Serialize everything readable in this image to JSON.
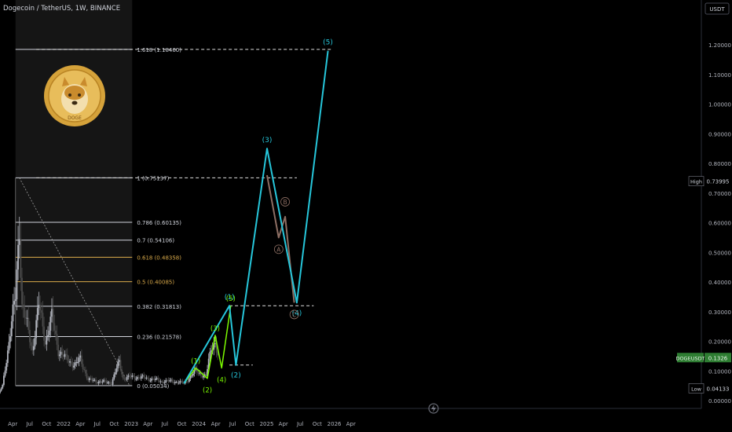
{
  "header": {
    "title": "Dogecoin / TetherUS, 1W, BINANCE"
  },
  "axis": {
    "currency_button": "USDT",
    "y_ticks": [
      "1.20000",
      "1.10000",
      "1.00000",
      "0.90000",
      "0.80000",
      "0.70000",
      "0.60000",
      "0.50000",
      "0.40000",
      "0.30000",
      "0.20000",
      "0.10000",
      "0.00000"
    ],
    "x_ticks": [
      "Apr",
      "Jul",
      "Oct",
      "2022",
      "Apr",
      "Jul",
      "Oct",
      "2023",
      "Apr",
      "Jul",
      "Oct",
      "2024",
      "Apr",
      "Jul",
      "Oct",
      "2025",
      "Apr",
      "Jul",
      "Oct",
      "2026",
      "Apr"
    ],
    "high_label": "High",
    "high_value": "0.73995",
    "low_label": "Low",
    "low_value": "0.04133",
    "symbol_label": "DOGEUSDT",
    "symbol_value": "0.1326"
  },
  "colors": {
    "background": "#000000",
    "up": "#b2b5be",
    "down": "#4a4a4a",
    "projection": "#26c6da",
    "wave_small": "#7cfc00",
    "correction": "#8d6e63",
    "fib_white": "#d1d4dc",
    "fib_gold": "#d8a94a",
    "highlight_box": "#151515",
    "symbol_badge": "#2e7d32"
  },
  "logo": {
    "name": "dogecoin-logo",
    "text": "DOGE"
  },
  "chart_data": {
    "type": "candlestick",
    "timeframe": "1W",
    "ylim": [
      0,
      1.26
    ],
    "fib_levels": [
      {
        "label": "1.618 (1.18460)",
        "value": 1.1846,
        "color": "white"
      },
      {
        "label": "1 (0.75137)",
        "value": 0.75137,
        "color": "white"
      },
      {
        "label": "0.786 (0.60135)",
        "value": 0.60135,
        "color": "white"
      },
      {
        "label": "0.7 (0.54106)",
        "value": 0.54106,
        "color": "white"
      },
      {
        "label": "0.618 (0.48358)",
        "value": 0.48358,
        "color": "gold"
      },
      {
        "label": "0.5 (0.40085)",
        "value": 0.40085,
        "color": "gold"
      },
      {
        "label": "0.382 (0.31813)",
        "value": 0.31813,
        "color": "white"
      },
      {
        "label": "0.236 (0.21578)",
        "value": 0.21578,
        "color": "white"
      },
      {
        "label": "0 (0.05034)",
        "value": 0.05034,
        "color": "white"
      }
    ],
    "price_path": [
      [
        "2021-01-01",
        0.005
      ],
      [
        "2021-02-05",
        0.05
      ],
      [
        "2021-04-16",
        0.35
      ],
      [
        "2021-05-07",
        0.6
      ],
      [
        "2021-05-21",
        0.32
      ],
      [
        "2021-06-18",
        0.25
      ],
      [
        "2021-07-16",
        0.17
      ],
      [
        "2021-08-20",
        0.32
      ],
      [
        "2021-09-24",
        0.2
      ],
      [
        "2021-10-29",
        0.28
      ],
      [
        "2021-12-03",
        0.17
      ],
      [
        "2022-01-14",
        0.14
      ],
      [
        "2022-03-04",
        0.12
      ],
      [
        "2022-04-01",
        0.14
      ],
      [
        "2022-05-13",
        0.07
      ],
      [
        "2022-07-01",
        0.065
      ],
      [
        "2022-09-16",
        0.06
      ],
      [
        "2022-10-28",
        0.13
      ],
      [
        "2022-11-18",
        0.075
      ],
      [
        "2023-01-13",
        0.08
      ],
      [
        "2023-03-31",
        0.075
      ],
      [
        "2023-06-16",
        0.065
      ],
      [
        "2023-08-18",
        0.065
      ],
      [
        "2023-10-13",
        0.058
      ],
      [
        "2023-12-15",
        0.1
      ],
      [
        "2024-02-09",
        0.08
      ],
      [
        "2024-03-08",
        0.18
      ],
      [
        "2024-03-29",
        0.2
      ],
      [
        "2024-04-12",
        0.15
      ]
    ],
    "wave_projection": [
      [
        "2023-10-13",
        0.058,
        ""
      ],
      [
        "2024-06-14",
        0.32,
        "(1)"
      ],
      [
        "2024-07-19",
        0.12,
        "(2)"
      ],
      [
        "2025-01-03",
        0.85,
        "(3)"
      ],
      [
        "2025-06-13",
        0.33,
        "(4)"
      ],
      [
        "2025-11-28",
        1.18,
        "(5)"
      ]
    ],
    "wave_subdivision": [
      [
        "2023-10-13",
        0.058,
        ""
      ],
      [
        "2023-12-15",
        0.11,
        "(1)"
      ],
      [
        "2024-02-16",
        0.075,
        "(2)"
      ],
      [
        "2024-03-29",
        0.22,
        "(3)"
      ],
      [
        "2024-05-03",
        0.11,
        "(4)"
      ],
      [
        "2024-06-21",
        0.32,
        "(5)"
      ]
    ],
    "correction_abc": [
      [
        "2025-01-03",
        0.76,
        ""
      ],
      [
        "2025-03-07",
        0.55,
        "A"
      ],
      [
        "2025-04-11",
        0.62,
        "B"
      ],
      [
        "2025-05-30",
        0.33,
        "C"
      ]
    ],
    "dashed_levels": [
      {
        "value": 1.1846,
        "from": "2021-08-06",
        "to": "2025-12-26"
      },
      {
        "value": 0.75137,
        "from": "2021-08-06",
        "to": "2025-06-13"
      },
      {
        "value": 0.32,
        "from": "2024-06-14",
        "to": "2025-09-12"
      },
      {
        "value": 0.12,
        "from": "2024-06-14",
        "to": "2024-10-18"
      }
    ]
  }
}
